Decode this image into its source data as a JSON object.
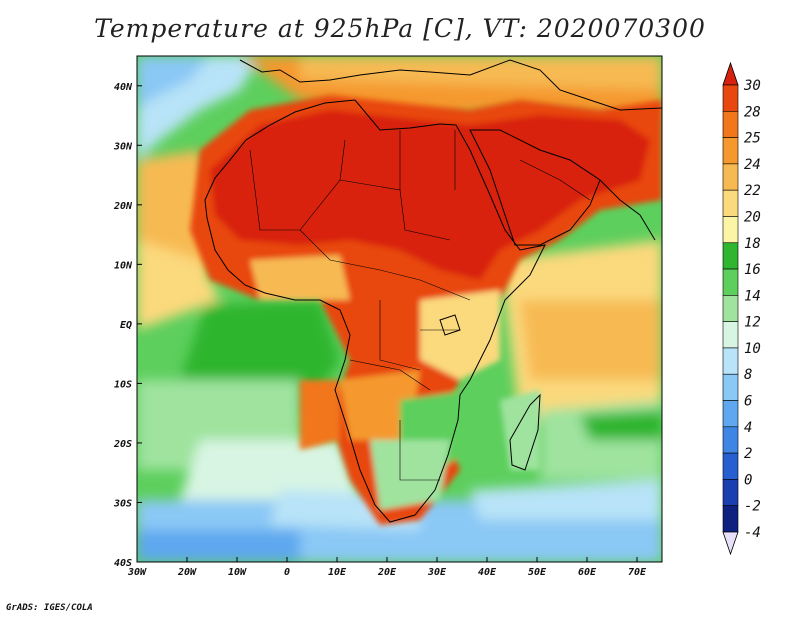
{
  "title": "Temperature at 925hPa [C], VT: 2020070300",
  "credit": "GrADS: IGES/COLA",
  "map": {
    "lon_range": [
      -30,
      75
    ],
    "lat_range": [
      -40,
      45
    ],
    "lat_ticks": [
      {
        "value": 40,
        "label": "40N"
      },
      {
        "value": 30,
        "label": "30N"
      },
      {
        "value": 20,
        "label": "20N"
      },
      {
        "value": 10,
        "label": "10N"
      },
      {
        "value": 0,
        "label": "EQ"
      },
      {
        "value": -10,
        "label": "10S"
      },
      {
        "value": -20,
        "label": "20S"
      },
      {
        "value": -30,
        "label": "30S"
      },
      {
        "value": -40,
        "label": "40S"
      }
    ],
    "lon_ticks": [
      {
        "value": -30,
        "label": "30W"
      },
      {
        "value": -20,
        "label": "20W"
      },
      {
        "value": -10,
        "label": "10W"
      },
      {
        "value": 0,
        "label": "0"
      },
      {
        "value": 10,
        "label": "10E"
      },
      {
        "value": 20,
        "label": "20E"
      },
      {
        "value": 30,
        "label": "30E"
      },
      {
        "value": 40,
        "label": "40E"
      },
      {
        "value": 50,
        "label": "50E"
      },
      {
        "value": 60,
        "label": "60E"
      },
      {
        "value": 70,
        "label": "70E"
      }
    ]
  },
  "colorbar": {
    "levels": [
      {
        "label": "30",
        "color": "#d8200f"
      },
      {
        "label": "28",
        "color": "#e8470f"
      },
      {
        "label": "25",
        "color": "#f2761a"
      },
      {
        "label": "24",
        "color": "#f5992e"
      },
      {
        "label": "22",
        "color": "#f7ba52"
      },
      {
        "label": "20",
        "color": "#fbd97d"
      },
      {
        "label": "18",
        "color": "#fdf5a6"
      },
      {
        "label": "16",
        "color": "#2fb52f"
      },
      {
        "label": "14",
        "color": "#5dcf5d"
      },
      {
        "label": "12",
        "color": "#9fe39f"
      },
      {
        "label": "10",
        "color": "#d8f5e3"
      },
      {
        "label": "8",
        "color": "#b8e3f8"
      },
      {
        "label": "6",
        "color": "#8ac8f5"
      },
      {
        "label": "4",
        "color": "#5fa8ef"
      },
      {
        "label": "2",
        "color": "#3f86e4"
      },
      {
        "label": "0",
        "color": "#2660d0"
      },
      {
        "label": "-2",
        "color": "#1a3fb0"
      },
      {
        "label": "-4",
        "color": "#0e2080"
      }
    ],
    "bottom_color": "#e8e0f8"
  },
  "chart_data": {
    "type": "heatmap",
    "title": "Temperature at 925hPa [C], VT: 2020070300",
    "variable": "Temperature at 925hPa",
    "units": "C",
    "valid_time": "2020070300",
    "x_range": [
      -30,
      75
    ],
    "y_range": [
      -40,
      45
    ],
    "colorbar_ticks": [
      30,
      28,
      25,
      24,
      22,
      20,
      18,
      16,
      14,
      12,
      10,
      8,
      6,
      4,
      2,
      0,
      -2,
      -4
    ]
  }
}
